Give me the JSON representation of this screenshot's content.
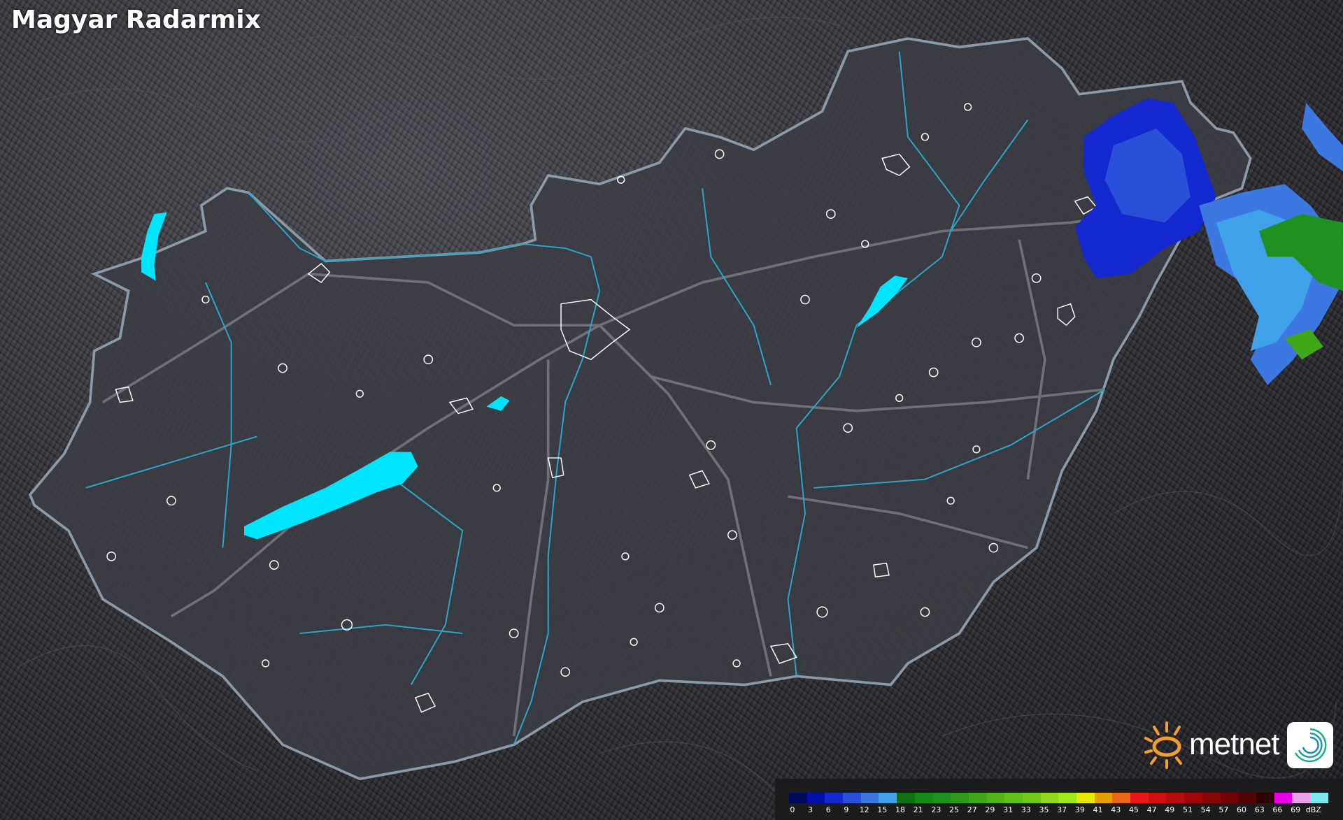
{
  "title": "Magyar Radarmix",
  "legend": {
    "unit": "dBZ",
    "labels": [
      "0",
      "3",
      "6",
      "9",
      "12",
      "15",
      "18",
      "21",
      "23",
      "25",
      "27",
      "29",
      "31",
      "33",
      "35",
      "37",
      "39",
      "41",
      "43",
      "45",
      "47",
      "49",
      "51",
      "54",
      "57",
      "60",
      "63",
      "66",
      "69"
    ],
    "colors": [
      "#000a5a",
      "#0010a8",
      "#1428d0",
      "#2850d8",
      "#3c78e0",
      "#40a0e8",
      "#107010",
      "#188818",
      "#209020",
      "#30981a",
      "#40a818",
      "#50b418",
      "#60c018",
      "#70c818",
      "#90d818",
      "#a0e818",
      "#e8e800",
      "#e8a000",
      "#e86818",
      "#e81818",
      "#d01010",
      "#b80c0c",
      "#a00808",
      "#880808",
      "#700404",
      "#500404",
      "#300000",
      "#e800e8",
      "#e8a0e8",
      "#80e8e8"
    ]
  },
  "brand": {
    "name": "metnet",
    "sun_color": "#f0a030"
  },
  "colors": {
    "border": "#8a9aa8",
    "river": "#2aa8c8",
    "lake": "#00e5ff",
    "road": "#6a6a70"
  }
}
